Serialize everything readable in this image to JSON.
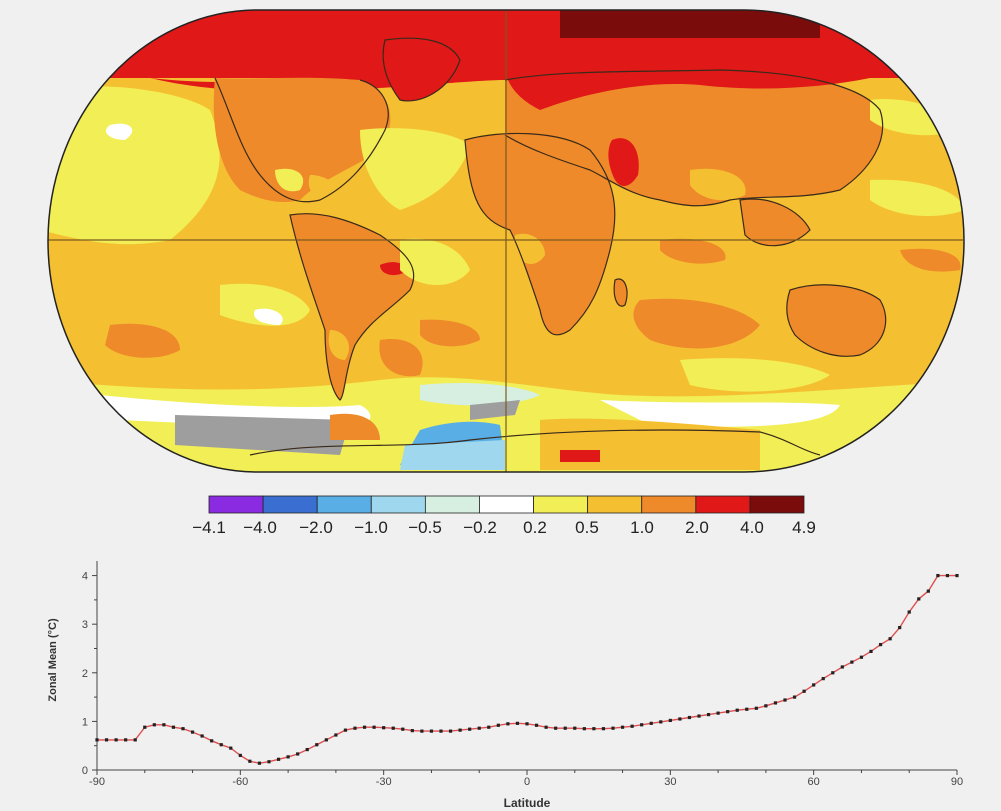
{
  "colors": {
    "page_background": "#f0f0f0",
    "map_outline": "#222222",
    "coastline": "#3a2a1a",
    "gridline": "#7a5a20",
    "no_data": "#9e9e9e",
    "zonal_point": "#222222",
    "zonal_line": "#e05050"
  },
  "colorbar": {
    "labels": [
      "−4.1",
      "−4.0",
      "−2.0",
      "−1.0",
      "−0.5",
      "−0.2",
      "0.2",
      "0.5",
      "1.0",
      "2.0",
      "4.0",
      "4.9"
    ],
    "bins": [
      {
        "color": "#8a2be2"
      },
      {
        "color": "#3a6ed0"
      },
      {
        "color": "#5aaee6"
      },
      {
        "color": "#9fd8ee"
      },
      {
        "color": "#d6efe0"
      },
      {
        "color": "#ffffff"
      },
      {
        "color": "#f2ee55"
      },
      {
        "color": "#f4c032"
      },
      {
        "color": "#ee8a2a"
      },
      {
        "color": "#e01818"
      },
      {
        "color": "#7a0c0c"
      }
    ]
  },
  "chart_data": {
    "type": "line",
    "xlabel": "Latitude",
    "ylabel": "Zonal Mean (°C)",
    "xlim": [
      -90,
      90
    ],
    "ylim": [
      0,
      4.3
    ],
    "xticks": [
      -90,
      -60,
      -30,
      0,
      30,
      60,
      90
    ],
    "yticks": [
      0,
      1,
      2,
      3,
      4
    ],
    "grid": false,
    "x": [
      -90,
      -88,
      -86,
      -84,
      -82,
      -80,
      -78,
      -76,
      -74,
      -72,
      -70,
      -68,
      -66,
      -64,
      -62,
      -60,
      -58,
      -56,
      -54,
      -52,
      -50,
      -48,
      -46,
      -44,
      -42,
      -40,
      -38,
      -36,
      -34,
      -32,
      -30,
      -28,
      -26,
      -24,
      -22,
      -20,
      -18,
      -16,
      -14,
      -12,
      -10,
      -8,
      -6,
      -4,
      -2,
      0,
      2,
      4,
      6,
      8,
      10,
      12,
      14,
      16,
      18,
      20,
      22,
      24,
      26,
      28,
      30,
      32,
      34,
      36,
      38,
      40,
      42,
      44,
      46,
      48,
      50,
      52,
      54,
      56,
      58,
      60,
      62,
      64,
      66,
      68,
      70,
      72,
      74,
      76,
      78,
      80,
      82,
      84,
      86,
      88,
      90
    ],
    "series": [
      {
        "values": [
          0.62,
          0.62,
          0.62,
          0.62,
          0.62,
          0.88,
          0.93,
          0.93,
          0.88,
          0.85,
          0.78,
          0.7,
          0.6,
          0.52,
          0.45,
          0.3,
          0.18,
          0.14,
          0.17,
          0.22,
          0.27,
          0.33,
          0.42,
          0.52,
          0.62,
          0.72,
          0.82,
          0.86,
          0.88,
          0.88,
          0.87,
          0.86,
          0.84,
          0.81,
          0.8,
          0.8,
          0.8,
          0.8,
          0.82,
          0.84,
          0.86,
          0.88,
          0.92,
          0.95,
          0.96,
          0.95,
          0.92,
          0.88,
          0.86,
          0.86,
          0.86,
          0.85,
          0.85,
          0.85,
          0.86,
          0.88,
          0.9,
          0.93,
          0.96,
          0.99,
          1.02,
          1.05,
          1.08,
          1.11,
          1.14,
          1.17,
          1.2,
          1.23,
          1.25,
          1.27,
          1.32,
          1.38,
          1.44,
          1.5,
          1.62,
          1.75,
          1.88,
          2.0,
          2.12,
          2.22,
          2.32,
          2.44,
          2.58,
          2.7,
          2.93,
          3.25,
          3.52,
          3.68,
          4.0,
          4.0,
          4.0
        ]
      }
    ]
  }
}
